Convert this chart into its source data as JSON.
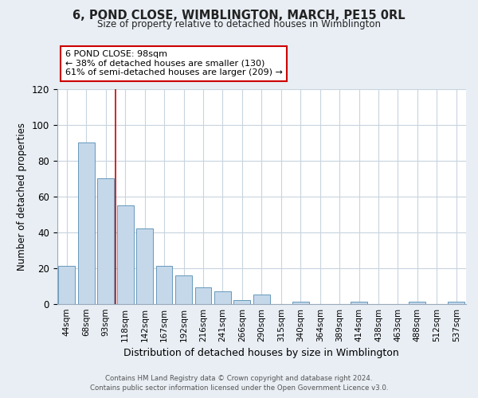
{
  "title": "6, POND CLOSE, WIMBLINGTON, MARCH, PE15 0RL",
  "subtitle": "Size of property relative to detached houses in Wimblington",
  "xlabel": "Distribution of detached houses by size in Wimblington",
  "ylabel": "Number of detached properties",
  "bar_labels": [
    "44sqm",
    "68sqm",
    "93sqm",
    "118sqm",
    "142sqm",
    "167sqm",
    "192sqm",
    "216sqm",
    "241sqm",
    "266sqm",
    "290sqm",
    "315sqm",
    "340sqm",
    "364sqm",
    "389sqm",
    "414sqm",
    "438sqm",
    "463sqm",
    "488sqm",
    "512sqm",
    "537sqm"
  ],
  "bar_values": [
    21,
    90,
    70,
    55,
    42,
    21,
    16,
    9,
    7,
    2,
    5,
    0,
    1,
    0,
    0,
    1,
    0,
    0,
    1,
    0,
    1
  ],
  "bar_color": "#c5d8ea",
  "bar_edge_color": "#6699bb",
  "vline_x": 2.5,
  "vline_color": "#cc0000",
  "ylim": [
    0,
    120
  ],
  "yticks": [
    0,
    20,
    40,
    60,
    80,
    100,
    120
  ],
  "annotation_title": "6 POND CLOSE: 98sqm",
  "annotation_line1": "← 38% of detached houses are smaller (130)",
  "annotation_line2": "61% of semi-detached houses are larger (209) →",
  "annotation_box_color": "#ffffff",
  "annotation_box_edge": "#cc0000",
  "footer_line1": "Contains HM Land Registry data © Crown copyright and database right 2024.",
  "footer_line2": "Contains public sector information licensed under the Open Government Licence v3.0.",
  "bg_color": "#e8eef4",
  "plot_bg_color": "#ffffff",
  "grid_color": "#c8d4de"
}
